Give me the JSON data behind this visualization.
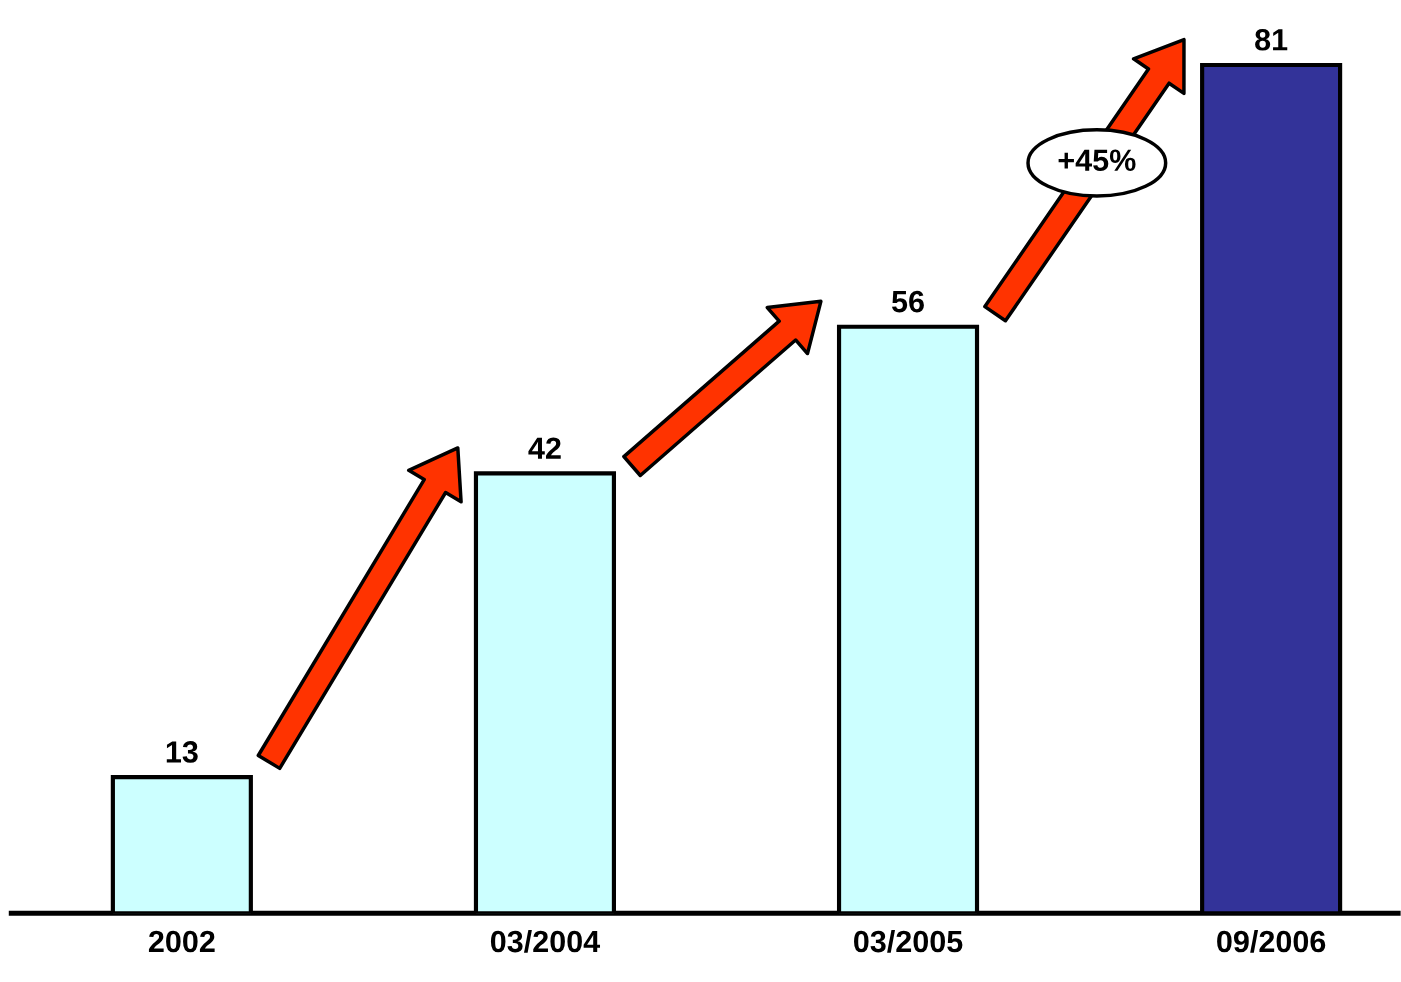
{
  "chart_data": {
    "type": "bar",
    "categories": [
      "2002",
      "03/2004",
      "03/2005",
      "09/2006"
    ],
    "values": [
      13,
      42,
      56,
      81
    ],
    "colors": [
      "#ccffff",
      "#ccffff",
      "#ccffff",
      "#333399"
    ],
    "data_labels": true,
    "annotations": [
      "+45%"
    ]
  }
}
